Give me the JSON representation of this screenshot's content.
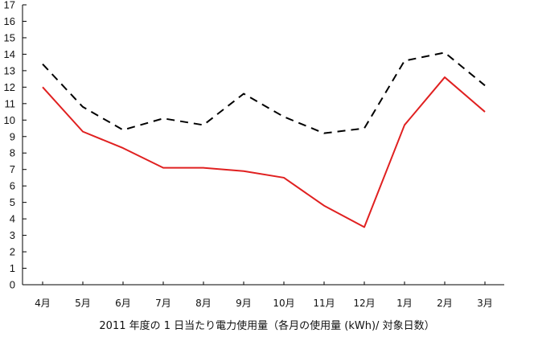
{
  "chart_data": {
    "type": "line",
    "title": "",
    "xlabel": "2011 年度の 1 日当たり電力使用量（各月の使用量 (kWh)/ 対象日数）",
    "ylabel": "",
    "categories": [
      "4月",
      "5月",
      "6月",
      "7月",
      "8月",
      "9月",
      "10月",
      "11月",
      "12月",
      "1月",
      "2月",
      "3月"
    ],
    "ylim": [
      0,
      17
    ],
    "yticks": [
      0,
      1,
      2,
      3,
      4,
      5,
      6,
      7,
      8,
      9,
      10,
      11,
      12,
      13,
      14,
      15,
      16,
      17
    ],
    "grid": false,
    "legend": "none",
    "series": [
      {
        "style": "dashed",
        "color": "#000000",
        "values": [
          13.4,
          10.8,
          9.4,
          10.1,
          9.7,
          11.6,
          10.2,
          9.2,
          9.5,
          13.6,
          14.1,
          12.1
        ]
      },
      {
        "style": "solid",
        "color": "#e02020",
        "values": [
          12.0,
          9.3,
          8.3,
          7.1,
          7.1,
          6.9,
          6.5,
          4.8,
          3.5,
          9.7,
          12.6,
          10.5
        ]
      }
    ]
  }
}
